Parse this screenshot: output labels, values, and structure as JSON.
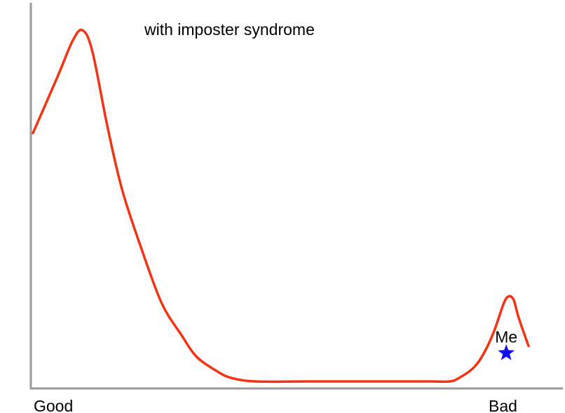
{
  "chart_data": {
    "type": "line",
    "title": "with imposter syndrome",
    "xlabel": "",
    "ylabel": "",
    "x_tick_labels": [
      {
        "x": 0.05,
        "label": "Good"
      },
      {
        "x": 0.95,
        "label": "Bad"
      }
    ],
    "xlim": [
      0,
      1
    ],
    "ylim": [
      0,
      1
    ],
    "grid": false,
    "series": [
      {
        "color": "#f03414",
        "points": [
          [
            0.0,
            0.7
          ],
          [
            0.05,
            0.86
          ],
          [
            0.08,
            0.96
          ],
          [
            0.1,
            0.99
          ],
          [
            0.12,
            0.93
          ],
          [
            0.15,
            0.72
          ],
          [
            0.18,
            0.54
          ],
          [
            0.22,
            0.37
          ],
          [
            0.26,
            0.22
          ],
          [
            0.3,
            0.13
          ],
          [
            0.33,
            0.07
          ],
          [
            0.37,
            0.03
          ],
          [
            0.4,
            0.01
          ],
          [
            0.45,
            0.0
          ],
          [
            0.55,
            0.0
          ],
          [
            0.7,
            0.0
          ],
          [
            0.8,
            0.0
          ],
          [
            0.84,
            0.0
          ],
          [
            0.86,
            0.01
          ],
          [
            0.89,
            0.04
          ],
          [
            0.91,
            0.08
          ],
          [
            0.93,
            0.14
          ],
          [
            0.95,
            0.22
          ],
          [
            0.96,
            0.24
          ],
          [
            0.97,
            0.23
          ],
          [
            0.98,
            0.18
          ],
          [
            1.0,
            0.1
          ]
        ]
      }
    ],
    "annotations": [
      {
        "label": "Me",
        "marker": "star",
        "color": "#1010ee",
        "x": 0.955,
        "y": 0.08
      }
    ]
  }
}
